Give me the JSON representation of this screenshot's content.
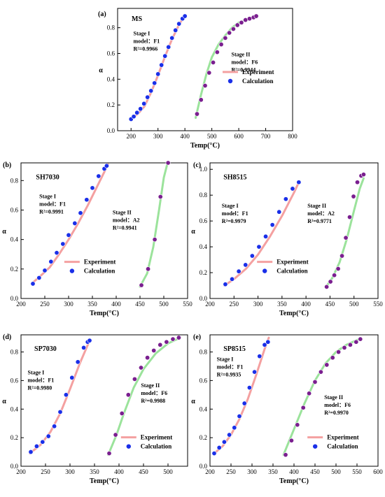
{
  "colors": {
    "stage1_experiment": "#f4a0a0",
    "stage2_experiment": "#9be39b",
    "stage1_point": "#1a2fe8",
    "stage2_point": "#7a1f8f"
  },
  "chart_data": [
    {
      "type": "line",
      "panel_label": "(a)",
      "title": "MS",
      "xlabel": "Temp(°C)",
      "ylabel": "α",
      "xlim": [
        150,
        800
      ],
      "ylim": [
        0,
        0.95
      ],
      "xticks": [
        200,
        300,
        400,
        500,
        600,
        700,
        800
      ],
      "yticks": [
        0.0,
        0.2,
        0.4,
        0.6,
        0.8
      ],
      "legend": {
        "items": [
          "Experiment",
          "Calculation"
        ],
        "placement": "right-middle"
      },
      "stage1_annotation": [
        "Stage I",
        "model：F1",
        "R²=0.9966"
      ],
      "stage2_annotation": [
        "Stage II",
        "model：F6",
        "R²=0.9944"
      ],
      "series": [
        {
          "name": "Experiment",
          "stage": 1,
          "x": [
            200,
            225,
            250,
            275,
            300,
            325,
            350,
            375,
            400
          ],
          "y": [
            0.09,
            0.13,
            0.19,
            0.3,
            0.43,
            0.57,
            0.7,
            0.81,
            0.9
          ]
        },
        {
          "name": "Calculation",
          "stage": 1,
          "x": [
            200,
            210,
            222,
            235,
            248,
            261,
            274,
            287,
            300,
            313,
            326,
            339,
            352,
            365,
            378,
            391,
            400
          ],
          "y": [
            0.09,
            0.11,
            0.14,
            0.17,
            0.21,
            0.26,
            0.31,
            0.37,
            0.44,
            0.51,
            0.58,
            0.65,
            0.72,
            0.78,
            0.83,
            0.87,
            0.89
          ]
        },
        {
          "name": "Experiment",
          "stage": 2,
          "x": [
            440,
            460,
            480,
            500,
            525,
            550,
            575,
            600,
            625,
            650,
            670
          ],
          "y": [
            0.1,
            0.28,
            0.44,
            0.57,
            0.67,
            0.74,
            0.8,
            0.84,
            0.86,
            0.88,
            0.89
          ]
        },
        {
          "name": "Calculation",
          "stage": 2,
          "x": [
            445,
            460,
            475,
            490,
            505,
            520,
            535,
            550,
            565,
            580,
            595,
            610,
            625,
            640,
            655,
            665
          ],
          "y": [
            0.13,
            0.24,
            0.35,
            0.45,
            0.53,
            0.61,
            0.67,
            0.72,
            0.76,
            0.79,
            0.82,
            0.84,
            0.86,
            0.87,
            0.88,
            0.89
          ]
        }
      ]
    },
    {
      "type": "line",
      "panel_label": "(b)",
      "title": "SH7030",
      "xlabel": "Temp(°C)",
      "ylabel": "α",
      "xlim": [
        200,
        550
      ],
      "ylim": [
        0,
        0.92
      ],
      "xticks": [
        200,
        250,
        300,
        350,
        400,
        450,
        500,
        550
      ],
      "yticks": [
        0.0,
        0.2,
        0.4,
        0.6,
        0.8
      ],
      "legend": {
        "items": [
          "Experiment",
          "Calculation"
        ],
        "placement": "left-lower"
      },
      "stage1_annotation": [
        "Stage I",
        "model：F1",
        "R²=0.9991"
      ],
      "stage2_annotation": [
        "Stage II",
        "model：A2",
        "R²=0.9941"
      ],
      "series": [
        {
          "name": "Experiment",
          "stage": 1,
          "x": [
            222,
            240,
            260,
            280,
            300,
            320,
            340,
            360,
            383
          ],
          "y": [
            0.1,
            0.15,
            0.21,
            0.3,
            0.4,
            0.51,
            0.63,
            0.76,
            0.91
          ]
        },
        {
          "name": "Calculation",
          "stage": 1,
          "x": [
            225,
            238,
            250,
            263,
            275,
            288,
            300,
            313,
            325,
            338,
            350,
            363,
            375,
            380
          ],
          "y": [
            0.1,
            0.14,
            0.19,
            0.25,
            0.31,
            0.37,
            0.43,
            0.51,
            0.58,
            0.67,
            0.75,
            0.83,
            0.88,
            0.9
          ]
        },
        {
          "name": "Experiment",
          "stage": 2,
          "x": [
            450,
            465,
            478,
            490,
            500,
            508
          ],
          "y": [
            0.08,
            0.17,
            0.35,
            0.6,
            0.82,
            0.92
          ]
        },
        {
          "name": "Calculation",
          "stage": 2,
          "x": [
            453,
            467,
            481,
            493,
            509
          ],
          "y": [
            0.09,
            0.2,
            0.4,
            0.69,
            0.92
          ]
        }
      ]
    },
    {
      "type": "line",
      "panel_label": "(c)",
      "title": "SH8515",
      "xlabel": "Temp(°C)",
      "ylabel": "α",
      "xlim": [
        200,
        550
      ],
      "ylim": [
        0,
        1.05
      ],
      "xticks": [
        200,
        250,
        300,
        350,
        400,
        450,
        500,
        550
      ],
      "yticks": [
        0.0,
        0.2,
        0.4,
        0.6,
        0.8,
        1.0
      ],
      "legend": {
        "items": [
          "Experiment",
          "Calculation"
        ],
        "placement": "center"
      },
      "stage1_annotation": [
        "Stage I",
        "model：F1",
        "R²=0.9979"
      ],
      "stage2_annotation": [
        "Stage II",
        "model：A2",
        "R²=0.9771"
      ],
      "series": [
        {
          "name": "Experiment",
          "stage": 1,
          "x": [
            230,
            250,
            275,
            300,
            325,
            350,
            375,
            385
          ],
          "y": [
            0.1,
            0.15,
            0.23,
            0.34,
            0.48,
            0.64,
            0.82,
            0.9
          ]
        },
        {
          "name": "Calculation",
          "stage": 1,
          "x": [
            232,
            246,
            260,
            274,
            288,
            302,
            316,
            330,
            344,
            358,
            372,
            385
          ],
          "y": [
            0.11,
            0.15,
            0.21,
            0.26,
            0.33,
            0.4,
            0.48,
            0.57,
            0.67,
            0.77,
            0.85,
            0.9
          ]
        },
        {
          "name": "Experiment",
          "stage": 2,
          "x": [
            442,
            455,
            470,
            485,
            500,
            512,
            520
          ],
          "y": [
            0.09,
            0.16,
            0.28,
            0.46,
            0.68,
            0.85,
            0.93
          ]
        },
        {
          "name": "Calculation",
          "stage": 2,
          "x": [
            443,
            451,
            459,
            467,
            475,
            483,
            491,
            499,
            507,
            515,
            520
          ],
          "y": [
            0.09,
            0.13,
            0.18,
            0.23,
            0.33,
            0.47,
            0.63,
            0.79,
            0.9,
            0.95,
            0.96
          ]
        }
      ]
    },
    {
      "type": "line",
      "panel_label": "(d)",
      "title": "SP7030",
      "xlabel": "Temp(°C)",
      "ylabel": "α",
      "xlim": [
        200,
        540
      ],
      "ylim": [
        0,
        0.92
      ],
      "xticks": [
        200,
        250,
        300,
        350,
        400,
        450,
        500
      ],
      "yticks": [
        0.0,
        0.2,
        0.4,
        0.6,
        0.8
      ],
      "legend": {
        "items": [
          "Experiment",
          "Calculation"
        ],
        "placement": "right-lower"
      },
      "stage1_annotation": [
        "Stage I",
        "model：F1",
        "R²=0.9980"
      ],
      "stage2_annotation": [
        "Stage II",
        "model：F6",
        "R²=0.9988"
      ],
      "series": [
        {
          "name": "Experiment",
          "stage": 1,
          "x": [
            218,
            240,
            260,
            280,
            300,
            320,
            340
          ],
          "y": [
            0.09,
            0.15,
            0.24,
            0.37,
            0.54,
            0.72,
            0.88
          ]
        },
        {
          "name": "Calculation",
          "stage": 1,
          "x": [
            220,
            232,
            244,
            256,
            268,
            280,
            292,
            304,
            316,
            328,
            336,
            340
          ],
          "y": [
            0.1,
            0.14,
            0.17,
            0.21,
            0.28,
            0.38,
            0.5,
            0.62,
            0.73,
            0.83,
            0.87,
            0.88
          ]
        },
        {
          "name": "Experiment",
          "stage": 2,
          "x": [
            378,
            395,
            410,
            430,
            450,
            475,
            500,
            525
          ],
          "y": [
            0.08,
            0.22,
            0.37,
            0.55,
            0.68,
            0.79,
            0.86,
            0.9
          ]
        },
        {
          "name": "Calculation",
          "stage": 2,
          "x": [
            380,
            393,
            406,
            419,
            432,
            445,
            458,
            471,
            484,
            497,
            510,
            522
          ],
          "y": [
            0.09,
            0.22,
            0.37,
            0.5,
            0.61,
            0.69,
            0.76,
            0.81,
            0.85,
            0.87,
            0.89,
            0.9
          ]
        }
      ]
    },
    {
      "type": "line",
      "panel_label": "(e)",
      "title": "SP8515",
      "xlabel": "Temp(°C)",
      "ylabel": "α",
      "xlim": [
        200,
        600
      ],
      "ylim": [
        0,
        0.92
      ],
      "xticks": [
        200,
        250,
        300,
        350,
        400,
        450,
        500,
        550,
        600
      ],
      "yticks": [
        0.0,
        0.2,
        0.4,
        0.6,
        0.8
      ],
      "legend": {
        "items": [
          "Experiment",
          "Calculation"
        ],
        "placement": "right-lower"
      },
      "stage1_annotation": [
        "Stage I",
        "model：F1",
        "R²=0.9935"
      ],
      "stage2_annotation": [
        "Stage II",
        "model：F6",
        "R²=0.9970"
      ],
      "series": [
        {
          "name": "Experiment",
          "stage": 1,
          "x": [
            210,
            230,
            250,
            270,
            290,
            310,
            330,
            340
          ],
          "y": [
            0.09,
            0.14,
            0.22,
            0.33,
            0.47,
            0.64,
            0.82,
            0.9
          ]
        },
        {
          "name": "Calculation",
          "stage": 1,
          "x": [
            210,
            222,
            234,
            246,
            258,
            270,
            282,
            294,
            306,
            318,
            330,
            338
          ],
          "y": [
            0.09,
            0.13,
            0.17,
            0.22,
            0.27,
            0.35,
            0.44,
            0.55,
            0.66,
            0.77,
            0.85,
            0.87
          ]
        },
        {
          "name": "Experiment",
          "stage": 2,
          "x": [
            375,
            400,
            425,
            450,
            475,
            500,
            525,
            555
          ],
          "y": [
            0.08,
            0.26,
            0.44,
            0.6,
            0.72,
            0.8,
            0.85,
            0.89
          ]
        },
        {
          "name": "Calculation",
          "stage": 2,
          "x": [
            380,
            394,
            408,
            422,
            436,
            450,
            464,
            478,
            492,
            506,
            520,
            534,
            548,
            558
          ],
          "y": [
            0.08,
            0.18,
            0.29,
            0.41,
            0.51,
            0.59,
            0.66,
            0.71,
            0.76,
            0.8,
            0.83,
            0.85,
            0.87,
            0.89
          ]
        }
      ]
    }
  ]
}
